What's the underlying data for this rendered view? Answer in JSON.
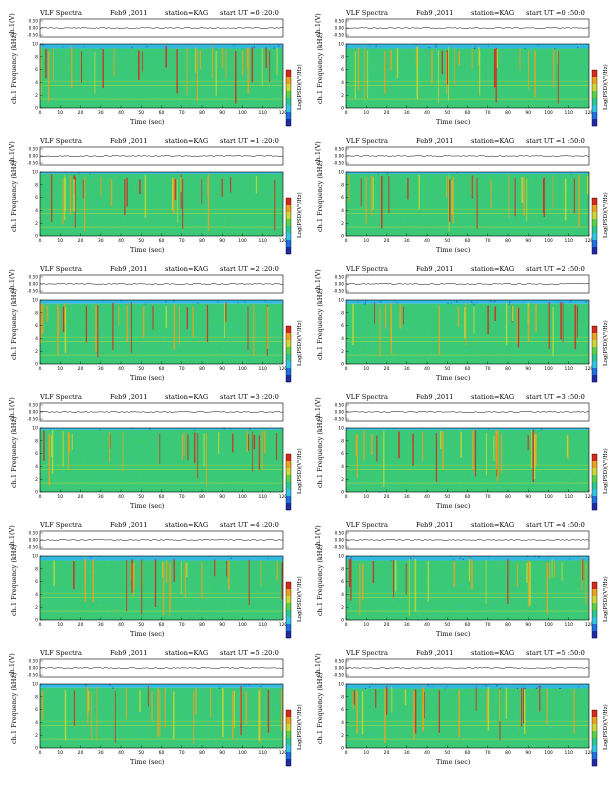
{
  "colors": {
    "cmap": [
      "#1e2aa8",
      "#1f6fe0",
      "#2ec4e8",
      "#27c98a",
      "#5bd143",
      "#c9d930",
      "#f0a020",
      "#d8281c"
    ],
    "background_field": "#3cc977",
    "upper_field": "#33b8e0"
  },
  "panel_template": {
    "title": "VLF Spectra",
    "date": "Feb9 ,2011",
    "station": "station=KAG",
    "ch_label": "ch.1(V)",
    "ylabel": "ch.1 Frequency  (kHz)",
    "xlabel": "Time  (sec)",
    "cbar_label": "Log(PSD)(V²/Hz)"
  },
  "chart_data": [
    {
      "type": "heatmap",
      "panel": "0:20",
      "ut_label": "start  UT  =0 :20:0",
      "seed": 11,
      "xlabel": "Time  (sec)",
      "ylabel": "Frequency  (kHz)",
      "x_ticks": [
        0,
        10,
        20,
        30,
        40,
        50,
        60,
        70,
        80,
        90,
        100,
        110,
        120
      ],
      "y_ticks": [
        0,
        2,
        4,
        6,
        8,
        10
      ],
      "ch_ticks": [
        "0.50",
        "0.00",
        "-0.50"
      ],
      "xlim": [
        0,
        120
      ],
      "ylim": [
        0,
        10
      ],
      "cutoff_khz": 9.3
    },
    {
      "type": "heatmap",
      "panel": "0:50",
      "ut_label": "start  UT  =0 :50:0",
      "seed": 23,
      "xlabel": "Time  (sec)",
      "ylabel": "Frequency  (kHz)",
      "x_ticks": [
        0,
        10,
        20,
        30,
        40,
        50,
        60,
        70,
        80,
        90,
        100,
        110,
        120
      ],
      "y_ticks": [
        0,
        2,
        4,
        6,
        8,
        10
      ],
      "ch_ticks": [
        "0.50",
        "0.00",
        "-0.50"
      ],
      "xlim": [
        0,
        120
      ],
      "ylim": [
        0,
        10
      ],
      "cutoff_khz": 9.3
    },
    {
      "type": "heatmap",
      "panel": "1:20",
      "ut_label": "start  UT  =1 :20:0",
      "seed": 37,
      "xlabel": "Time  (sec)",
      "ylabel": "Frequency  (kHz)",
      "x_ticks": [
        0,
        10,
        20,
        30,
        40,
        50,
        60,
        70,
        80,
        90,
        100,
        110,
        120
      ],
      "y_ticks": [
        0,
        2,
        4,
        6,
        8,
        10
      ],
      "ch_ticks": [
        "0.50",
        "0.00",
        "-0.50"
      ],
      "xlim": [
        0,
        120
      ],
      "ylim": [
        0,
        10
      ],
      "cutoff_khz": 9.7
    },
    {
      "type": "heatmap",
      "panel": "1:50",
      "ut_label": "start  UT  =1 :50:0",
      "seed": 41,
      "xlabel": "Time  (sec)",
      "ylabel": "Frequency  (kHz)",
      "x_ticks": [
        0,
        10,
        20,
        30,
        40,
        50,
        60,
        70,
        80,
        90,
        100,
        110,
        120
      ],
      "y_ticks": [
        0,
        2,
        4,
        6,
        8,
        10
      ],
      "ch_ticks": [
        "0.50",
        "0.00",
        "-0.50"
      ],
      "xlim": [
        0,
        120
      ],
      "ylim": [
        0,
        10
      ],
      "cutoff_khz": 9.7
    },
    {
      "type": "heatmap",
      "panel": "2:20",
      "ut_label": "start  UT  =2 :20:0",
      "seed": 53,
      "xlabel": "Time  (sec)",
      "ylabel": "Frequency  (kHz)",
      "x_ticks": [
        0,
        10,
        20,
        30,
        40,
        50,
        60,
        70,
        80,
        90,
        100,
        110,
        120
      ],
      "y_ticks": [
        0,
        2,
        4,
        6,
        8,
        10
      ],
      "ch_ticks": [
        "0.50",
        "0.00",
        "-0.50"
      ],
      "xlim": [
        0,
        120
      ],
      "ylim": [
        0,
        10
      ],
      "cutoff_khz": 9.4
    },
    {
      "type": "heatmap",
      "panel": "2:50",
      "ut_label": "start  UT  =2 :50:0",
      "seed": 67,
      "xlabel": "Time  (sec)",
      "ylabel": "Frequency  (kHz)",
      "x_ticks": [
        0,
        10,
        20,
        30,
        40,
        50,
        60,
        70,
        80,
        90,
        100,
        110,
        120
      ],
      "y_ticks": [
        0,
        2,
        4,
        6,
        8,
        10
      ],
      "ch_ticks": [
        "0.50",
        "0.00",
        "-0.50"
      ],
      "xlim": [
        0,
        120
      ],
      "ylim": [
        0,
        10
      ],
      "cutoff_khz": 9.4
    },
    {
      "type": "heatmap",
      "panel": "3:20",
      "ut_label": "start  UT  =3 :20:0",
      "seed": 71,
      "xlabel": "Time  (sec)",
      "ylabel": "Frequency  (kHz)",
      "x_ticks": [
        0,
        10,
        20,
        30,
        40,
        50,
        60,
        70,
        80,
        90,
        100,
        110,
        120
      ],
      "y_ticks": [
        0,
        2,
        4,
        6,
        8,
        10
      ],
      "ch_ticks": [
        "0.50",
        "0.00",
        "-0.50"
      ],
      "xlim": [
        0,
        120
      ],
      "ylim": [
        0,
        10
      ],
      "cutoff_khz": 9.7
    },
    {
      "type": "heatmap",
      "panel": "3:50",
      "ut_label": "start  UT  =3 :50:0",
      "seed": 83,
      "xlabel": "Time  (sec)",
      "ylabel": "Frequency  (kHz)",
      "x_ticks": [
        0,
        10,
        20,
        30,
        40,
        50,
        60,
        70,
        80,
        90,
        100,
        110,
        120
      ],
      "y_ticks": [
        0,
        2,
        4,
        6,
        8,
        10
      ],
      "ch_ticks": [
        "0.50",
        "0.00",
        "-0.50"
      ],
      "xlim": [
        0,
        120
      ],
      "ylim": [
        0,
        10
      ],
      "cutoff_khz": 9.7
    },
    {
      "type": "heatmap",
      "panel": "4:20",
      "ut_label": "start  UT  =4 :20:0",
      "seed": 97,
      "xlabel": "Time  (sec)",
      "ylabel": "Frequency  (kHz)",
      "x_ticks": [
        0,
        10,
        20,
        30,
        40,
        50,
        60,
        70,
        80,
        90,
        100,
        110,
        120
      ],
      "y_ticks": [
        0,
        2,
        4,
        6,
        8,
        10
      ],
      "ch_ticks": [
        "0.50",
        "0.00",
        "-0.50"
      ],
      "xlim": [
        0,
        120
      ],
      "ylim": [
        0,
        10
      ],
      "cutoff_khz": 9.3
    },
    {
      "type": "heatmap",
      "panel": "4:50",
      "ut_label": "start  UT  =4 :50:0",
      "seed": 101,
      "xlabel": "Time  (sec)",
      "ylabel": "Frequency  (kHz)",
      "x_ticks": [
        0,
        10,
        20,
        30,
        40,
        50,
        60,
        70,
        80,
        90,
        100,
        110,
        120
      ],
      "y_ticks": [
        0,
        2,
        4,
        6,
        8,
        10
      ],
      "ch_ticks": [
        "0.50",
        "0.00",
        "-0.50"
      ],
      "xlim": [
        0,
        120
      ],
      "ylim": [
        0,
        10
      ],
      "cutoff_khz": 9.3
    },
    {
      "type": "heatmap",
      "panel": "5:20",
      "ut_label": "start  UT  =5 :20:0",
      "seed": 113,
      "xlabel": "Time  (sec)",
      "ylabel": "Frequency  (kHz)",
      "x_ticks": [
        0,
        10,
        20,
        30,
        40,
        50,
        60,
        70,
        80,
        90,
        100,
        110,
        120
      ],
      "y_ticks": [
        0,
        2,
        4,
        6,
        8,
        10
      ],
      "ch_ticks": [
        "0.50",
        "0.00",
        "-0.50"
      ],
      "xlim": [
        0,
        120
      ],
      "ylim": [
        0,
        10
      ],
      "cutoff_khz": 9.4
    },
    {
      "type": "heatmap",
      "panel": "5:50",
      "ut_label": "start  UT  =5 :50:0",
      "seed": 127,
      "xlabel": "Time  (sec)",
      "ylabel": "Frequency  (kHz)",
      "x_ticks": [
        0,
        10,
        20,
        30,
        40,
        50,
        60,
        70,
        80,
        90,
        100,
        110,
        120
      ],
      "y_ticks": [
        0,
        2,
        4,
        6,
        8,
        10
      ],
      "ch_ticks": [
        "0.50",
        "0.00",
        "-0.50"
      ],
      "xlim": [
        0,
        120
      ],
      "ylim": [
        0,
        10
      ],
      "cutoff_khz": 9.3
    }
  ]
}
